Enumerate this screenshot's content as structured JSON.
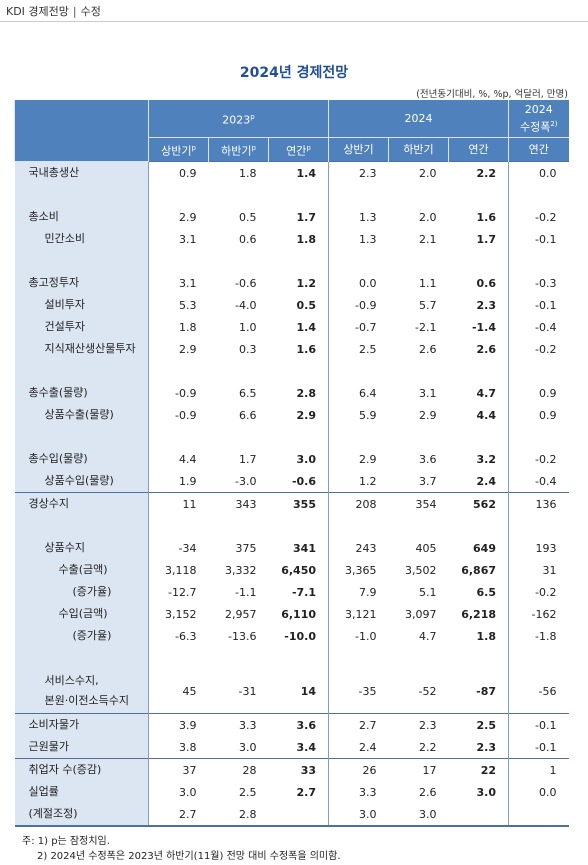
{
  "header": {
    "brand": "KDI 경제전망",
    "tag": "수정"
  },
  "title": "2024년 경제전망",
  "unit": "(전년동기대비, %, %p, 억달러, 만명)",
  "table": {
    "column_groups": [
      {
        "text": "2023",
        "sup": "p"
      },
      {
        "text": "2024"
      },
      {
        "text": "2024\n수정폭",
        "sup": "2)"
      }
    ],
    "columns": [
      {
        "text": "상반기",
        "sup": "p"
      },
      {
        "text": "하반기",
        "sup": "p"
      },
      {
        "text": "연간",
        "sup": "p"
      },
      {
        "text": "상반기"
      },
      {
        "text": "하반기"
      },
      {
        "text": "연간"
      },
      {
        "text": "연간"
      }
    ],
    "sections": [
      [
        [
          {
            "label": "국내총생산",
            "level": 0,
            "values": [
              "0.9",
              "1.8",
              "1.4",
              "2.3",
              "2.0",
              "2.2",
              "0.0"
            ]
          }
        ],
        [
          {
            "label": "총소비",
            "level": 0,
            "values": [
              "2.9",
              "0.5",
              "1.7",
              "1.3",
              "2.0",
              "1.6",
              "-0.2"
            ]
          },
          {
            "label": "민간소비",
            "level": 1,
            "values": [
              "3.1",
              "0.6",
              "1.8",
              "1.3",
              "2.1",
              "1.7",
              "-0.1"
            ]
          }
        ],
        [
          {
            "label": "총고정투자",
            "level": 0,
            "values": [
              "3.1",
              "-0.6",
              "1.2",
              "0.0",
              "1.1",
              "0.6",
              "-0.3"
            ]
          },
          {
            "label": "설비투자",
            "level": 1,
            "values": [
              "5.3",
              "-4.0",
              "0.5",
              "-0.9",
              "5.7",
              "2.3",
              "-0.1"
            ]
          },
          {
            "label": "건설투자",
            "level": 1,
            "values": [
              "1.8",
              "1.0",
              "1.4",
              "-0.7",
              "-2.1",
              "-1.4",
              "-0.4"
            ]
          },
          {
            "label": "지식재산생산물투자",
            "level": 1,
            "values": [
              "2.9",
              "0.3",
              "1.6",
              "2.5",
              "2.6",
              "2.6",
              "-0.2"
            ]
          }
        ],
        [
          {
            "label": "총수출(물량)",
            "level": 0,
            "values": [
              "-0.9",
              "6.5",
              "2.8",
              "6.4",
              "3.1",
              "4.7",
              "0.9"
            ]
          },
          {
            "label": "상품수출(물량)",
            "level": 1,
            "values": [
              "-0.9",
              "6.6",
              "2.9",
              "5.9",
              "2.9",
              "4.4",
              "0.9"
            ]
          }
        ],
        [
          {
            "label": "총수입(물량)",
            "level": 0,
            "values": [
              "4.4",
              "1.7",
              "3.0",
              "2.9",
              "3.6",
              "3.2",
              "-0.2"
            ]
          },
          {
            "label": "상품수입(물량)",
            "level": 1,
            "values": [
              "1.9",
              "-3.0",
              "-0.6",
              "1.2",
              "3.7",
              "2.4",
              "-0.4"
            ]
          }
        ]
      ],
      [
        [
          {
            "label": "경상수지",
            "level": 0,
            "values": [
              "11",
              "343",
              "355",
              "208",
              "354",
              "562",
              "136"
            ]
          }
        ],
        [
          {
            "label": "상품수지",
            "level": 1,
            "values": [
              "-34",
              "375",
              "341",
              "243",
              "405",
              "649",
              "193"
            ]
          },
          {
            "label": "수출(금액)",
            "level": 2,
            "values": [
              "3,118",
              "3,332",
              "6,450",
              "3,365",
              "3,502",
              "6,867",
              "31"
            ]
          },
          {
            "label": "(증가율)",
            "level": 3,
            "values": [
              "-12.7",
              "-1.1",
              "-7.1",
              "7.9",
              "5.1",
              "6.5",
              "-0.2"
            ]
          },
          {
            "label": "수입(금액)",
            "level": 2,
            "values": [
              "3,152",
              "2,957",
              "6,110",
              "3,121",
              "3,097",
              "6,218",
              "-162"
            ]
          },
          {
            "label": "(증가율)",
            "level": 3,
            "values": [
              "-6.3",
              "-13.6",
              "-10.0",
              "-1.0",
              "4.7",
              "1.8",
              "-1.8"
            ]
          }
        ],
        [
          {
            "label": "서비스수지,\n본원·이전소득수지",
            "level": 1,
            "values": [
              "45",
              "-31",
              "14",
              "-35",
              "-52",
              "-87",
              "-56"
            ]
          }
        ]
      ],
      [
        [
          {
            "label": "소비자물가",
            "level": 0,
            "values": [
              "3.9",
              "3.3",
              "3.6",
              "2.7",
              "2.3",
              "2.5",
              "-0.1"
            ]
          },
          {
            "label": "근원물가",
            "level": 0,
            "values": [
              "3.8",
              "3.0",
              "3.4",
              "2.4",
              "2.2",
              "2.3",
              "-0.1"
            ]
          }
        ]
      ],
      [
        [
          {
            "label": "취업자 수(증감)",
            "level": 0,
            "values": [
              "37",
              "28",
              "33",
              "26",
              "17",
              "22",
              "1"
            ]
          },
          {
            "label": "실업률",
            "level": 0,
            "values": [
              "3.0",
              "2.5",
              "2.7",
              "3.3",
              "2.6",
              "3.0",
              "0.0"
            ]
          },
          {
            "label": "(계절조정)",
            "level": 0,
            "values": [
              "2.7",
              "2.8",
              null,
              "3.0",
              "3.0",
              null,
              null
            ]
          }
        ]
      ]
    ]
  },
  "notes": [
    "주:  1) p는 잠정치임.",
    "2) 2024년 수정폭은 2023년 하반기(11월) 전망 대비 수정폭을 의미함."
  ]
}
